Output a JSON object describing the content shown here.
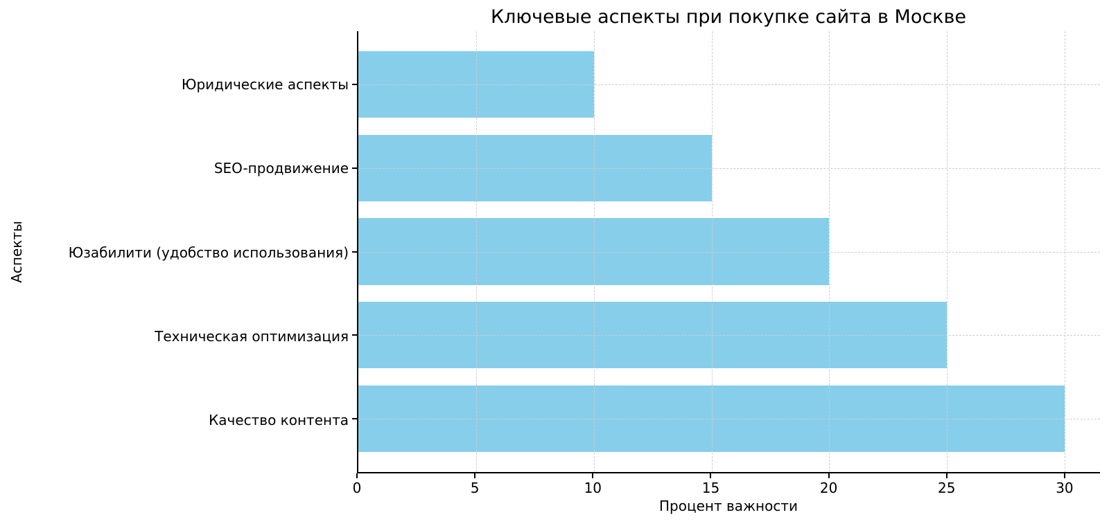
{
  "chart_data": {
    "type": "bar",
    "orientation": "horizontal",
    "title": "Ключевые аспекты при покупке сайта в Москве",
    "xlabel": "Процент важности",
    "ylabel": "Аспекты",
    "order": "top-to-bottom",
    "categories": [
      "Юридические аспекты",
      "SEO-продвижение",
      "Юзабилити (удобство использования)",
      "Техническая оптимизация",
      "Качество контента"
    ],
    "values": [
      10,
      15,
      20,
      25,
      30
    ],
    "xticks": [
      0,
      5,
      10,
      15,
      20,
      25,
      30
    ],
    "xlim": [
      0,
      31.5
    ],
    "grid": "dashed",
    "legend": "none",
    "colors": {
      "bar": "#87CEEB",
      "grid": "#cccccc",
      "axis": "#000000",
      "background": "#ffffff"
    }
  }
}
